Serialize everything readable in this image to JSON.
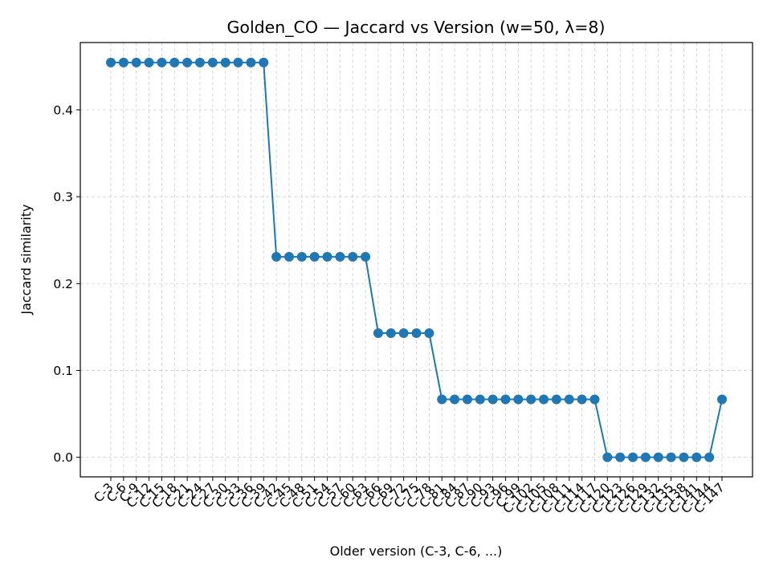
{
  "chart_data": {
    "type": "line",
    "title": "Golden_CO — Jaccard vs Version (w=50, λ=8)",
    "xlabel": "Older version (C-3, C-6, ...)",
    "ylabel": "Jaccard similarity",
    "ylim": [
      -0.0225,
      0.4775
    ],
    "y_ticks": [
      0.0,
      0.1,
      0.2,
      0.3,
      0.4
    ],
    "grid": true,
    "series_color": "#1f77b4",
    "categories": [
      "C-3",
      "C-6",
      "C-9",
      "C-12",
      "C-15",
      "C-18",
      "C-21",
      "C-24",
      "C-27",
      "C-30",
      "C-33",
      "C-36",
      "C-39",
      "C-42",
      "C-45",
      "C-48",
      "C-51",
      "C-54",
      "C-57",
      "C-60",
      "C-63",
      "C-66",
      "C-69",
      "C-72",
      "C-75",
      "C-78",
      "C-81",
      "C-84",
      "C-87",
      "C-90",
      "C-93",
      "C-96",
      "C-99",
      "C-102",
      "C-105",
      "C-108",
      "C-111",
      "C-114",
      "C-117",
      "C-120",
      "C-123",
      "C-126",
      "C-129",
      "C-132",
      "C-135",
      "C-138",
      "C-141",
      "C-144",
      "C-147"
    ],
    "values": [
      0.4545,
      0.4545,
      0.4545,
      0.4545,
      0.4545,
      0.4545,
      0.4545,
      0.4545,
      0.4545,
      0.4545,
      0.4545,
      0.4545,
      0.4545,
      0.2308,
      0.2308,
      0.2308,
      0.2308,
      0.2308,
      0.2308,
      0.2308,
      0.2308,
      0.1429,
      0.1429,
      0.1429,
      0.1429,
      0.1429,
      0.0667,
      0.0667,
      0.0667,
      0.0667,
      0.0667,
      0.0667,
      0.0667,
      0.0667,
      0.0667,
      0.0667,
      0.0667,
      0.0667,
      0.0667,
      0.0,
      0.0,
      0.0,
      0.0,
      0.0,
      0.0,
      0.0,
      0.0,
      0.0,
      0.0667
    ]
  }
}
